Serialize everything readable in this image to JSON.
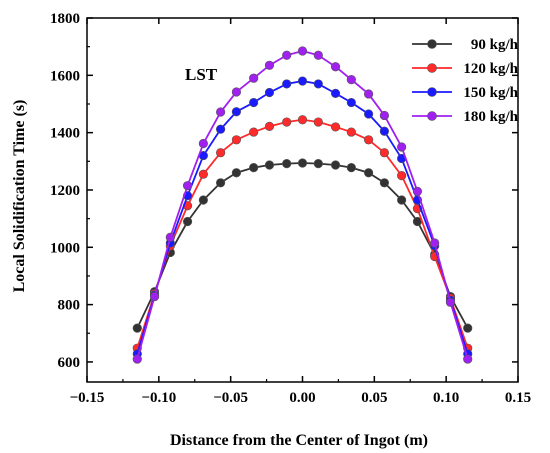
{
  "chart_data": {
    "type": "line",
    "title": "",
    "annotation": "LST",
    "xlabel": "Distance from the Center of Ingot (m)",
    "ylabel": "Local Solidification Time (s)",
    "xlim": [
      -0.15,
      0.15
    ],
    "ylim": [
      530,
      1800
    ],
    "xticks": [
      -0.15,
      -0.1,
      -0.05,
      0.0,
      0.05,
      0.1,
      0.15
    ],
    "xtick_labels": [
      "−0.15",
      "−0.10",
      "−0.05",
      "0.00",
      "0.05",
      "0.10",
      "0.15"
    ],
    "yticks": [
      600,
      800,
      1000,
      1200,
      1400,
      1600,
      1800
    ],
    "ytick_labels": [
      "600",
      "800",
      "1000",
      "1200",
      "1400",
      "1600",
      "1800"
    ],
    "grid": false,
    "legend_position": "top-right",
    "x": [
      -0.115,
      -0.103,
      -0.092,
      -0.08,
      -0.069,
      -0.057,
      -0.046,
      -0.034,
      -0.023,
      -0.011,
      0.0,
      0.011,
      0.023,
      0.034,
      0.046,
      0.057,
      0.069,
      0.08,
      0.092,
      0.103,
      0.115
    ],
    "series": [
      {
        "name": "90 kg/h",
        "color": "#333333",
        "values": [
          718,
          845,
          982,
          1090,
          1165,
          1225,
          1260,
          1278,
          1287,
          1292,
          1294,
          1292,
          1287,
          1278,
          1260,
          1225,
          1165,
          1090,
          975,
          828,
          718
        ]
      },
      {
        "name": "120 kg/h",
        "color": "#ff2a2a",
        "values": [
          648,
          838,
          1005,
          1145,
          1255,
          1330,
          1375,
          1402,
          1422,
          1437,
          1445,
          1437,
          1420,
          1402,
          1375,
          1330,
          1250,
          1135,
          968,
          822,
          648
        ]
      },
      {
        "name": "150 kg/h",
        "color": "#1a1aff",
        "values": [
          628,
          833,
          1015,
          1180,
          1320,
          1412,
          1473,
          1505,
          1540,
          1570,
          1580,
          1570,
          1537,
          1505,
          1465,
          1405,
          1310,
          1165,
          1005,
          815,
          628
        ]
      },
      {
        "name": "180 kg/h",
        "color": "#a020f0",
        "values": [
          610,
          828,
          1035,
          1215,
          1362,
          1472,
          1542,
          1590,
          1635,
          1670,
          1685,
          1670,
          1630,
          1585,
          1535,
          1460,
          1350,
          1195,
          1015,
          808,
          610
        ]
      }
    ]
  }
}
